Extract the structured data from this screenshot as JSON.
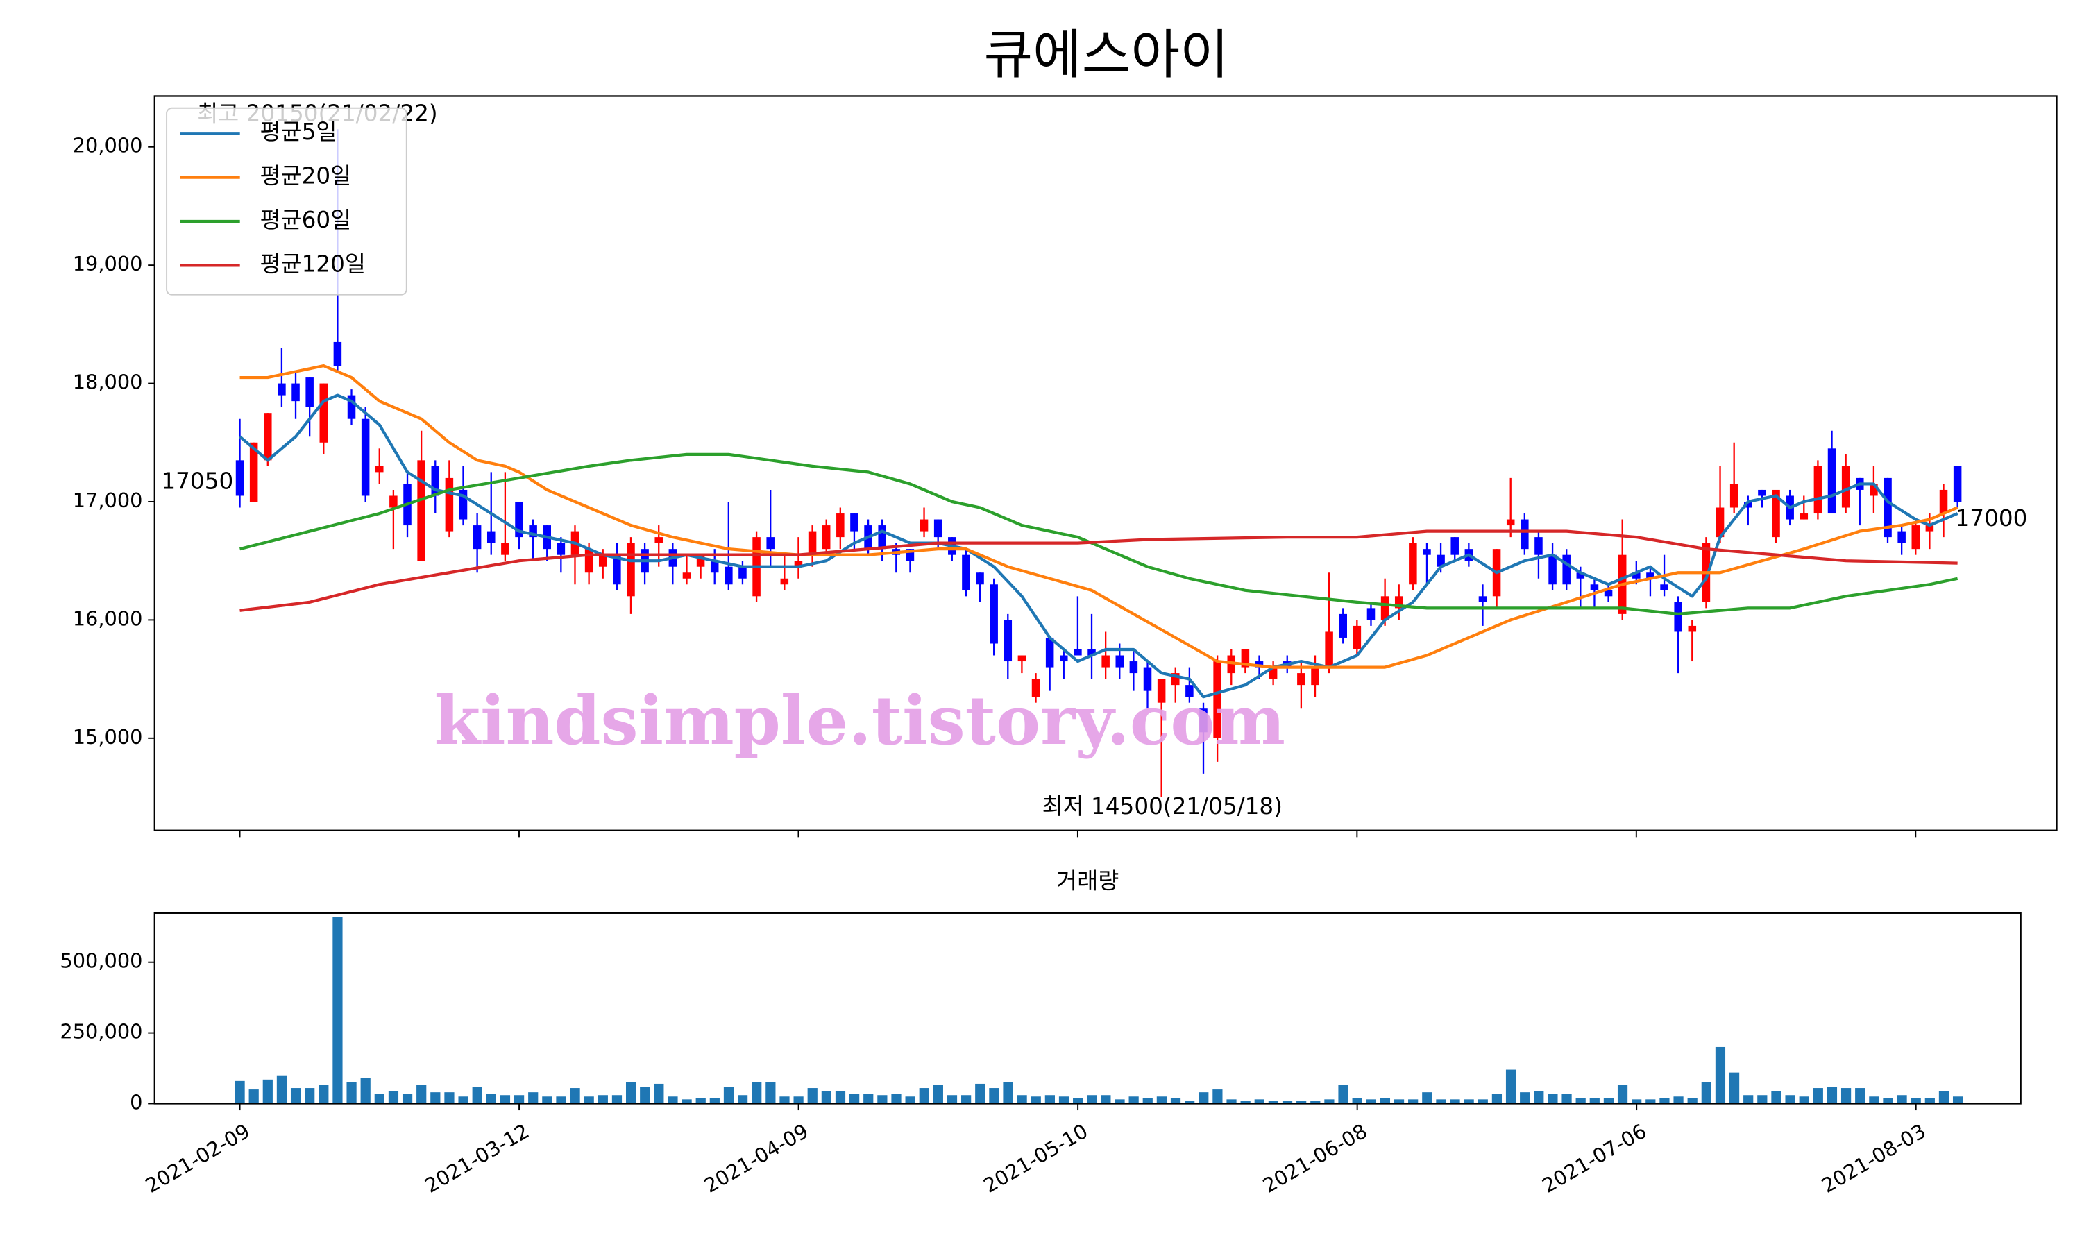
{
  "chart_data": [
    {
      "type": "candlestick",
      "title": "큐에스아이",
      "xlim": [
        -6.1,
        130.1
      ],
      "xticks": [
        0,
        20,
        40,
        60,
        80,
        100,
        120
      ],
      "ylim": [
        14220,
        20430
      ],
      "yticks": [
        {
          "value": 15000,
          "label": "15,000"
        },
        {
          "value": 16000,
          "label": "16,000"
        },
        {
          "value": 17000,
          "label": "17,000"
        },
        {
          "value": 18000,
          "label": "18,000"
        },
        {
          "value": 19000,
          "label": "19,000"
        },
        {
          "value": 20000,
          "label": "20,000"
        }
      ],
      "up_color": "#ff0000",
      "down_color": "#0000ff",
      "open": [
        17350,
        17000,
        17350,
        18000,
        18000,
        18050,
        17500,
        18350,
        17900,
        17700,
        17250,
        16950,
        17150,
        16500,
        17300,
        16750,
        17100,
        16800,
        16750,
        16550,
        17000,
        16800,
        16800,
        16650,
        16550,
        16400,
        16450,
        16550,
        16200,
        16600,
        16650,
        16600,
        16350,
        16450,
        16500,
        16450,
        16450,
        16200,
        16700,
        16300,
        16450,
        16550,
        16600,
        16700,
        16900,
        16800,
        16800,
        16600,
        16600,
        16750,
        16850,
        16700,
        16550,
        16400,
        16300,
        16000,
        15650,
        15350,
        15850,
        15700,
        15750,
        15750,
        15600,
        15700,
        15650,
        15600,
        15300,
        15450,
        15450,
        15250,
        15000,
        15550,
        15600,
        15650,
        15500,
        15650,
        15450,
        15450,
        15600,
        16050,
        15750,
        16100,
        16000,
        16100,
        16300,
        16600,
        16550,
        16700,
        16600,
        16200,
        16200,
        16800,
        16850,
        16700,
        16550,
        16550,
        16400,
        16300,
        16250,
        16050,
        16400,
        16400,
        16300,
        16150,
        15900,
        16150,
        16700,
        16950,
        17000,
        17100,
        16700,
        17050,
        16850,
        16900,
        17450,
        16950,
        17200,
        17050,
        17200,
        16750,
        16600,
        16750,
        16900,
        17300
      ],
      "high": [
        17700,
        17500,
        17750,
        18300,
        18100,
        18050,
        18000,
        20150,
        17950,
        17800,
        17450,
        17100,
        17250,
        17600,
        17350,
        17350,
        17300,
        16900,
        17250,
        17250,
        17000,
        16850,
        16800,
        16700,
        16800,
        16650,
        16600,
        16650,
        16700,
        16650,
        16800,
        16650,
        16550,
        16550,
        16600,
        17000,
        16500,
        16750,
        17100,
        16550,
        16700,
        16800,
        16850,
        16950,
        16900,
        16850,
        16850,
        16650,
        16600,
        16950,
        16850,
        16700,
        16600,
        16400,
        16350,
        16050,
        15700,
        15550,
        15850,
        15750,
        16200,
        16050,
        15900,
        15800,
        15750,
        15650,
        15500,
        15600,
        15600,
        15300,
        15700,
        15750,
        15750,
        15700,
        15650,
        15700,
        15650,
        15700,
        16400,
        16100,
        16000,
        16150,
        16350,
        16300,
        16700,
        16650,
        16650,
        16700,
        16650,
        16300,
        16600,
        17200,
        16900,
        16750,
        16650,
        16600,
        16450,
        16350,
        16300,
        16850,
        16500,
        16450,
        16550,
        16200,
        16000,
        16700,
        17300,
        17500,
        17050,
        17100,
        17100,
        17100,
        17050,
        17350,
        17600,
        17400,
        17200,
        17300,
        17200,
        16800,
        16850,
        16900,
        17150,
        17300
      ],
      "low": [
        16950,
        17000,
        17300,
        17800,
        17700,
        17550,
        17400,
        18100,
        17650,
        17000,
        17150,
        16600,
        16700,
        16500,
        16900,
        16700,
        16800,
        16400,
        16550,
        16500,
        16600,
        16500,
        16500,
        16400,
        16300,
        16300,
        16350,
        16250,
        16050,
        16300,
        16450,
        16300,
        16300,
        16350,
        16300,
        16250,
        16300,
        16150,
        16450,
        16250,
        16350,
        16450,
        16550,
        16600,
        16600,
        16550,
        16500,
        16400,
        16400,
        16700,
        16600,
        16500,
        16200,
        16150,
        15700,
        15500,
        15550,
        15300,
        15400,
        15500,
        15700,
        15500,
        15500,
        15500,
        15400,
        15250,
        14500,
        15300,
        15300,
        14700,
        14800,
        15450,
        15550,
        15500,
        15450,
        15550,
        15250,
        15350,
        15550,
        15800,
        15700,
        15950,
        15950,
        16000,
        16250,
        16300,
        16400,
        16500,
        16450,
        15950,
        16100,
        16700,
        16550,
        16350,
        16250,
        16250,
        16100,
        16100,
        16150,
        16000,
        16300,
        16200,
        16200,
        15550,
        15650,
        16100,
        16650,
        16900,
        16800,
        16950,
        16650,
        16800,
        16850,
        16850,
        16900,
        16900,
        16800,
        16900,
        16650,
        16550,
        16550,
        16600,
        16700,
        16950
      ],
      "close": [
        17050,
        17500,
        17750,
        17900,
        17850,
        17800,
        18000,
        18150,
        17700,
        17050,
        17300,
        17050,
        16800,
        17350,
        17050,
        17200,
        16850,
        16600,
        16650,
        16650,
        16700,
        16700,
        16600,
        16550,
        16750,
        16600,
        16550,
        16300,
        16650,
        16400,
        16700,
        16450,
        16400,
        16550,
        16400,
        16300,
        16350,
        16700,
        16600,
        16350,
        16500,
        16750,
        16800,
        16900,
        16750,
        16600,
        16600,
        16550,
        16500,
        16850,
        16700,
        16550,
        16250,
        16300,
        15800,
        15650,
        15700,
        15500,
        15600,
        15650,
        15700,
        15700,
        15700,
        15600,
        15550,
        15400,
        15500,
        15550,
        15350,
        15050,
        15650,
        15700,
        15750,
        15600,
        15600,
        15600,
        15550,
        15600,
        15900,
        15850,
        15950,
        16000,
        16200,
        16200,
        16650,
        16550,
        16450,
        16550,
        16500,
        16150,
        16600,
        16850,
        16600,
        16550,
        16300,
        16300,
        16350,
        16250,
        16200,
        16550,
        16350,
        16350,
        16250,
        15900,
        15950,
        16650,
        16950,
        17150,
        16950,
        17050,
        17100,
        16850,
        16900,
        17300,
        16900,
        17300,
        17100,
        17150,
        16700,
        16650,
        16800,
        16800,
        17100,
        17000
      ],
      "series": [
        {
          "name": "평균5일",
          "color": "#1f77b4",
          "x": [
            0,
            2,
            4,
            6,
            7,
            8,
            10,
            12,
            14,
            16,
            18,
            20,
            22,
            24,
            26,
            28,
            30,
            32,
            34,
            36,
            38,
            40,
            42,
            44,
            46,
            48,
            50,
            52,
            54,
            56,
            58,
            60,
            62,
            64,
            66,
            68,
            69,
            72,
            74,
            76,
            78,
            80,
            82,
            84,
            86,
            88,
            90,
            92,
            94,
            96,
            98,
            100,
            101,
            102,
            104,
            105,
            106,
            108,
            110,
            111,
            112,
            114,
            116,
            117,
            118,
            120,
            121,
            122,
            123
          ],
          "values": [
            17550,
            17350,
            17550,
            17850,
            17900,
            17850,
            17650,
            17250,
            17100,
            17050,
            16900,
            16750,
            16700,
            16650,
            16550,
            16500,
            16500,
            16550,
            16500,
            16450,
            16450,
            16450,
            16500,
            16650,
            16750,
            16650,
            16650,
            16600,
            16450,
            16200,
            15850,
            15650,
            15750,
            15750,
            15550,
            15500,
            15350,
            15450,
            15600,
            15650,
            15600,
            15700,
            16000,
            16150,
            16450,
            16550,
            16400,
            16500,
            16550,
            16400,
            16300,
            16400,
            16450,
            16350,
            16200,
            16350,
            16700,
            17000,
            17050,
            16950,
            17000,
            17050,
            17150,
            17150,
            17000,
            16850,
            16800,
            16850,
            16900
          ]
        },
        {
          "name": "평균20일",
          "color": "#ff7f0e",
          "x": [
            0,
            2,
            4,
            6,
            8,
            10,
            13,
            15,
            17,
            19,
            20,
            22,
            25,
            28,
            31,
            35,
            40,
            45,
            50,
            52,
            55,
            58,
            61,
            64,
            67,
            70,
            74,
            78,
            82,
            85,
            88,
            91,
            95,
            99,
            103,
            106,
            109,
            112,
            116,
            119,
            121,
            123
          ],
          "values": [
            18050,
            18050,
            18100,
            18150,
            18050,
            17850,
            17700,
            17500,
            17350,
            17300,
            17250,
            17100,
            16950,
            16800,
            16700,
            16600,
            16550,
            16550,
            16600,
            16600,
            16450,
            16350,
            16250,
            16050,
            15850,
            15650,
            15600,
            15600,
            15600,
            15700,
            15850,
            16000,
            16150,
            16300,
            16400,
            16400,
            16500,
            16600,
            16750,
            16800,
            16850,
            16950
          ]
        },
        {
          "name": "평균60일",
          "color": "#2ca02c",
          "x": [
            0,
            10,
            15,
            20,
            25,
            28,
            32,
            35,
            38,
            41,
            45,
            48,
            51,
            53,
            56,
            60,
            62,
            65,
            68,
            72,
            76,
            80,
            85,
            90,
            95,
            99,
            103,
            108,
            111,
            115,
            118,
            121,
            123
          ],
          "values": [
            16600,
            16900,
            17100,
            17200,
            17300,
            17350,
            17400,
            17400,
            17350,
            17300,
            17250,
            17150,
            17000,
            16950,
            16800,
            16700,
            16600,
            16450,
            16350,
            16250,
            16200,
            16150,
            16100,
            16100,
            16100,
            16100,
            16050,
            16100,
            16100,
            16200,
            16250,
            16300,
            16350
          ]
        },
        {
          "name": "평균120일",
          "color": "#d62728",
          "x": [
            0,
            5,
            10,
            15,
            20,
            25,
            30,
            40,
            50,
            60,
            65,
            75,
            80,
            85,
            90,
            95,
            100,
            105,
            110,
            115,
            123
          ],
          "values": [
            16080,
            16150,
            16300,
            16400,
            16500,
            16550,
            16550,
            16550,
            16650,
            16650,
            16680,
            16700,
            16700,
            16750,
            16750,
            16750,
            16700,
            16600,
            16550,
            16500,
            16480
          ]
        }
      ],
      "legend": "upper left",
      "annotations": [
        {
          "text": "최고 20150(21/02/22)",
          "color": "#ff0000"
        },
        {
          "text": "최저 14500(21/05/18)",
          "color": "#0000ff"
        },
        {
          "text": "17050",
          "color": "#000000"
        },
        {
          "text": "17000",
          "color": "#000000"
        }
      ],
      "watermark": "kindsimple.tistory.com"
    },
    {
      "type": "bar",
      "title": "거래량",
      "color": "#1f77b4",
      "xlim": [
        -6.1,
        127.5
      ],
      "xticks": [
        {
          "value": 0,
          "label": "2021-02-09"
        },
        {
          "value": 20,
          "label": "2021-03-12"
        },
        {
          "value": 40,
          "label": "2021-04-09"
        },
        {
          "value": 60,
          "label": "2021-05-10"
        },
        {
          "value": 80,
          "label": "2021-06-08"
        },
        {
          "value": 100,
          "label": "2021-07-06"
        },
        {
          "value": 120,
          "label": "2021-08-03"
        }
      ],
      "ylim": [
        0,
        674000
      ],
      "yticks": [
        0,
        {
          "value": 250000,
          "label": "250,000"
        },
        {
          "value": 500000,
          "label": "500,000"
        }
      ],
      "values": [
        80000,
        50000,
        85000,
        100000,
        55000,
        55000,
        65000,
        660000,
        75000,
        90000,
        35000,
        45000,
        35000,
        65000,
        40000,
        40000,
        25000,
        60000,
        35000,
        30000,
        30000,
        40000,
        25000,
        25000,
        55000,
        25000,
        30000,
        30000,
        75000,
        60000,
        70000,
        25000,
        15000,
        20000,
        20000,
        60000,
        30000,
        75000,
        75000,
        25000,
        25000,
        55000,
        45000,
        45000,
        35000,
        35000,
        30000,
        35000,
        25000,
        55000,
        65000,
        30000,
        30000,
        70000,
        55000,
        75000,
        30000,
        25000,
        30000,
        25000,
        20000,
        30000,
        30000,
        15000,
        25000,
        20000,
        25000,
        20000,
        10000,
        40000,
        50000,
        15000,
        10000,
        15000,
        10000,
        10000,
        10000,
        10000,
        15000,
        65000,
        20000,
        15000,
        20000,
        15000,
        15000,
        40000,
        15000,
        15000,
        15000,
        15000,
        35000,
        120000,
        40000,
        45000,
        35000,
        35000,
        20000,
        20000,
        20000,
        65000,
        15000,
        15000,
        20000,
        25000,
        20000,
        75000,
        200000,
        110000,
        30000,
        30000,
        45000,
        30000,
        25000,
        55000,
        60000,
        55000,
        55000,
        25000,
        20000,
        30000,
        20000,
        20000,
        45000,
        25000
      ]
    }
  ]
}
